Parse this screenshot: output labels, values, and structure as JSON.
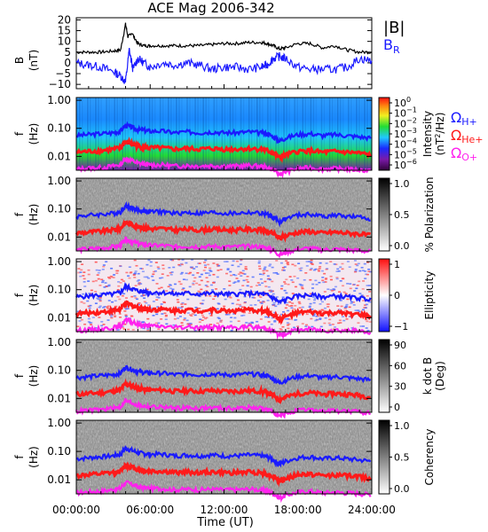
{
  "title": "ACE Mag 2006-342",
  "x_axis": {
    "ticks": [
      "00:00:00",
      "06:00:00",
      "12:00:00",
      "18:00:00",
      "24:00:00"
    ],
    "label": "Time (UT)"
  },
  "legends": {
    "magnitude": "|B|",
    "radial": "B",
    "radial_sub": "R",
    "omega": "Ω",
    "h": "H+",
    "he": "He+",
    "o": "O+"
  },
  "colorbars": {
    "intensity": {
      "ticks": [
        "10",
        "10",
        "10",
        "10",
        "10",
        "10",
        "10"
      ],
      "exps": [
        "0",
        "−1",
        "−2",
        "−3",
        "−4",
        "−5",
        "−6"
      ],
      "label1": "Intensity",
      "label2": "(nT",
      "label2_sup": "2",
      "label2_end": "/Hz)"
    },
    "polarization": {
      "ticks": [
        "1.0",
        "0.5",
        "0.0"
      ],
      "label": "% Polarization"
    },
    "ellipticity": {
      "ticks": [
        "1",
        "0",
        "−1"
      ],
      "label": "Ellipticity"
    },
    "kdotb": {
      "ticks": [
        "90",
        "60",
        "30",
        "0"
      ],
      "label1": "k dot B",
      "label2": "(Deg)"
    },
    "coherency": {
      "ticks": [
        "1.0",
        "0.5",
        "0.0"
      ],
      "label": "Coherency"
    }
  },
  "colors": {
    "h_plus": "#1a1aff",
    "he_plus": "#ff1a1a",
    "o_plus": "#ff22ee",
    "b_mag": "#000000",
    "b_r": "#1a1aff"
  },
  "chart_data": [
    {
      "type": "line",
      "panel": "B",
      "ylabel": "B",
      "ylabel_unit": "(nT)",
      "yticks": [
        "20",
        "15",
        "10",
        "5",
        "0",
        "−5",
        "−10"
      ],
      "ylim": [
        -12,
        21
      ],
      "xlim": [
        0,
        24
      ],
      "series": [
        {
          "name": "|B|",
          "x": [
            0,
            1,
            2,
            3,
            3.6,
            4,
            4.2,
            4.5,
            5,
            5.5,
            6,
            7,
            8,
            9,
            10,
            11,
            12,
            13,
            14,
            15,
            15.5,
            16,
            16.5,
            17,
            18,
            19,
            20,
            21,
            22,
            23,
            24
          ],
          "values": [
            5,
            5,
            5,
            5.5,
            6,
            18,
            12,
            14,
            9,
            8,
            8,
            8,
            8,
            8,
            8,
            8.5,
            9,
            9,
            9.5,
            9.5,
            9,
            8,
            6.5,
            7,
            9,
            9,
            7,
            8,
            6,
            5,
            5
          ]
        },
        {
          "name": "B_R",
          "x": [
            0,
            1,
            2,
            3,
            3.6,
            4,
            4.3,
            4.6,
            5,
            5.5,
            6,
            7,
            8,
            9,
            10,
            11,
            12,
            13,
            14,
            15,
            15.5,
            16,
            16.5,
            17,
            18,
            19,
            20,
            21,
            22,
            23,
            24
          ],
          "values": [
            0,
            -1,
            -2,
            -4,
            -6,
            -9,
            6,
            -3,
            2,
            0,
            -2,
            0,
            -1,
            0,
            -1,
            -3,
            -2,
            -2,
            -3,
            -2,
            -1,
            2,
            3,
            2,
            -2,
            -3,
            -3,
            -3,
            -2,
            2,
            1
          ]
        }
      ]
    },
    {
      "type": "heatmap",
      "panel": "intensity",
      "ylabel": "f",
      "ylabel_unit": "(Hz)",
      "yticks": [
        "1.00",
        "0.10",
        "0.01"
      ],
      "ylim": [
        0.003,
        1.2
      ],
      "yscale": "log",
      "zlim": [
        1e-06,
        1
      ],
      "zscale": "log",
      "colormap": "rainbow"
    },
    {
      "type": "heatmap",
      "panel": "polarization",
      "ylabel": "f",
      "ylabel_unit": "(Hz)",
      "yticks": [
        "1.00",
        "0.10",
        "0.01"
      ],
      "zlim": [
        0,
        1
      ],
      "colormap": "gray"
    },
    {
      "type": "heatmap",
      "panel": "ellipticity",
      "ylabel": "f",
      "ylabel_unit": "(Hz)",
      "yticks": [
        "1.00",
        "0.10",
        "0.01"
      ],
      "zlim": [
        -1,
        1
      ],
      "colormap": "blue-white-red"
    },
    {
      "type": "heatmap",
      "panel": "kdotb",
      "ylabel": "f",
      "ylabel_unit": "(Hz)",
      "yticks": [
        "1.00",
        "0.10",
        "0.01"
      ],
      "zlim": [
        0,
        90
      ],
      "colormap": "gray"
    },
    {
      "type": "heatmap",
      "panel": "coherency",
      "ylabel": "f",
      "ylabel_unit": "(Hz)",
      "yticks": [
        "1.00",
        "0.10",
        "0.01"
      ],
      "zlim": [
        0,
        1
      ],
      "colormap": "gray"
    },
    {
      "type": "line",
      "panel": "gyrofrequencies",
      "yscale": "log",
      "x": [
        0,
        1,
        2,
        3,
        3.6,
        4,
        4.5,
        5,
        5.5,
        6,
        7,
        8,
        9,
        10,
        11,
        12,
        13,
        14,
        15,
        15.5,
        16,
        16.5,
        17,
        18,
        19,
        20,
        21,
        22,
        23,
        24
      ],
      "series": [
        {
          "name": "Ω H+",
          "values": [
            0.055,
            0.06,
            0.065,
            0.07,
            0.08,
            0.13,
            0.11,
            0.09,
            0.085,
            0.08,
            0.08,
            0.07,
            0.075,
            0.07,
            0.075,
            0.07,
            0.07,
            0.075,
            0.07,
            0.065,
            0.05,
            0.035,
            0.045,
            0.06,
            0.065,
            0.055,
            0.06,
            0.055,
            0.05,
            0.045
          ]
        },
        {
          "name": "Ω He+",
          "values": [
            0.014,
            0.015,
            0.016,
            0.018,
            0.02,
            0.033,
            0.028,
            0.023,
            0.021,
            0.02,
            0.02,
            0.018,
            0.019,
            0.018,
            0.019,
            0.018,
            0.018,
            0.019,
            0.018,
            0.016,
            0.013,
            0.009,
            0.011,
            0.015,
            0.016,
            0.014,
            0.015,
            0.014,
            0.013,
            0.011
          ]
        },
        {
          "name": "Ω O+",
          "values": [
            0.0035,
            0.0038,
            0.004,
            0.0045,
            0.005,
            0.0082,
            0.007,
            0.0057,
            0.0053,
            0.005,
            0.005,
            0.0045,
            0.0047,
            0.0045,
            0.0047,
            0.0045,
            0.0045,
            0.0047,
            0.0045,
            0.004,
            0.0033,
            0.0023,
            0.0028,
            0.0037,
            0.004,
            0.0035,
            0.0037,
            0.0035,
            0.0033,
            0.003
          ]
        }
      ]
    }
  ]
}
